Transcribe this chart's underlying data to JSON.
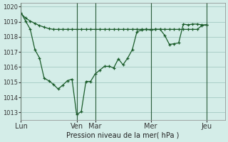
{
  "background_color": "#d4ede8",
  "grid_color": "#aacfc8",
  "line_color": "#1a5c2a",
  "xlabel": "Pression niveau de la mer( hPa )",
  "ylim": [
    1012.5,
    1020.25
  ],
  "yticks": [
    1013,
    1014,
    1015,
    1016,
    1017,
    1018,
    1019,
    1020
  ],
  "day_labels": [
    "Lun",
    "Ven",
    "Mar",
    "Mer",
    "Jeu"
  ],
  "day_positions": [
    0,
    72,
    96,
    168,
    240
  ],
  "total_hours": 264,
  "series1_x": [
    0,
    6,
    12,
    18,
    24,
    30,
    36,
    42,
    48,
    54,
    60,
    66,
    72,
    78,
    84,
    90,
    96,
    102,
    108,
    114,
    120,
    126,
    132,
    138,
    144,
    150,
    156,
    162,
    168,
    174,
    180,
    186,
    192,
    198,
    204,
    210,
    216,
    222,
    228,
    234,
    240
  ],
  "series1_y": [
    1019.6,
    1019.05,
    1018.5,
    1017.15,
    1016.6,
    1015.25,
    1015.1,
    1014.85,
    1014.55,
    1014.8,
    1015.1,
    1015.2,
    1012.85,
    1013.05,
    1015.05,
    1015.05,
    1015.55,
    1015.8,
    1016.05,
    1016.05,
    1015.95,
    1016.55,
    1016.15,
    1016.6,
    1017.15,
    1018.35,
    1018.45,
    1018.5,
    1018.45,
    1018.5,
    1018.5,
    1018.1,
    1017.5,
    1017.55,
    1017.6,
    1018.85,
    1018.8,
    1018.85,
    1018.85,
    1018.8,
    1018.8
  ],
  "series2_x": [
    0,
    6,
    12,
    18,
    24,
    30,
    36,
    42,
    48,
    54,
    60,
    66,
    72,
    78,
    84,
    90,
    96,
    102,
    108,
    114,
    120,
    126,
    132,
    138,
    144,
    150,
    156,
    162,
    168,
    174,
    180,
    186,
    192,
    198,
    204,
    210,
    216,
    222,
    228,
    234,
    240
  ],
  "series2_y": [
    1019.55,
    1019.25,
    1019.05,
    1018.9,
    1018.75,
    1018.65,
    1018.55,
    1018.5,
    1018.5,
    1018.5,
    1018.5,
    1018.5,
    1018.5,
    1018.5,
    1018.5,
    1018.5,
    1018.5,
    1018.5,
    1018.5,
    1018.5,
    1018.5,
    1018.5,
    1018.5,
    1018.5,
    1018.5,
    1018.5,
    1018.5,
    1018.5,
    1018.5,
    1018.5,
    1018.5,
    1018.5,
    1018.5,
    1018.5,
    1018.5,
    1018.5,
    1018.5,
    1018.5,
    1018.5,
    1018.75,
    1018.8
  ]
}
